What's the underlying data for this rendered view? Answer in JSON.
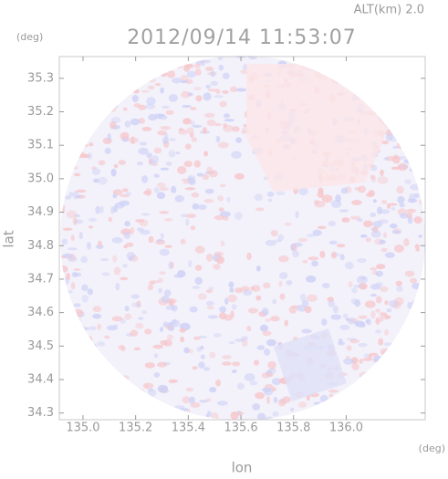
{
  "chart_data": {
    "type": "radar-map",
    "title": "2012/09/14 11:53:07",
    "subtitle": "ALT(km) 2.0",
    "x_label": "lon",
    "y_label": "lat",
    "x_unit": "(deg)",
    "y_unit": "(deg)",
    "xlim": [
      134.91,
      136.3
    ],
    "ylim": [
      34.28,
      35.365
    ],
    "xticks": [
      {
        "value": 135,
        "label": "135.0"
      },
      {
        "value": 135.2,
        "label": "135.2"
      },
      {
        "value": 135.4,
        "label": "135.4"
      },
      {
        "value": 135.6,
        "label": "135.6"
      },
      {
        "value": 135.8,
        "label": "135.8"
      },
      {
        "value": 136,
        "label": "136.0"
      }
    ],
    "yticks": [
      {
        "value": 34.3,
        "label": "34.3"
      },
      {
        "value": 34.4,
        "label": "34.4"
      },
      {
        "value": 34.5,
        "label": "34.5"
      },
      {
        "value": 34.6,
        "label": "34.6"
      },
      {
        "value": 34.7,
        "label": "34.7"
      },
      {
        "value": 34.8,
        "label": "34.8"
      },
      {
        "value": 34.9,
        "label": "34.9"
      },
      {
        "value": 35,
        "label": "35.0"
      },
      {
        "value": 35.1,
        "label": "35.1"
      },
      {
        "value": 35.2,
        "label": "35.2"
      },
      {
        "value": 35.3,
        "label": "35.3"
      }
    ]
  }
}
